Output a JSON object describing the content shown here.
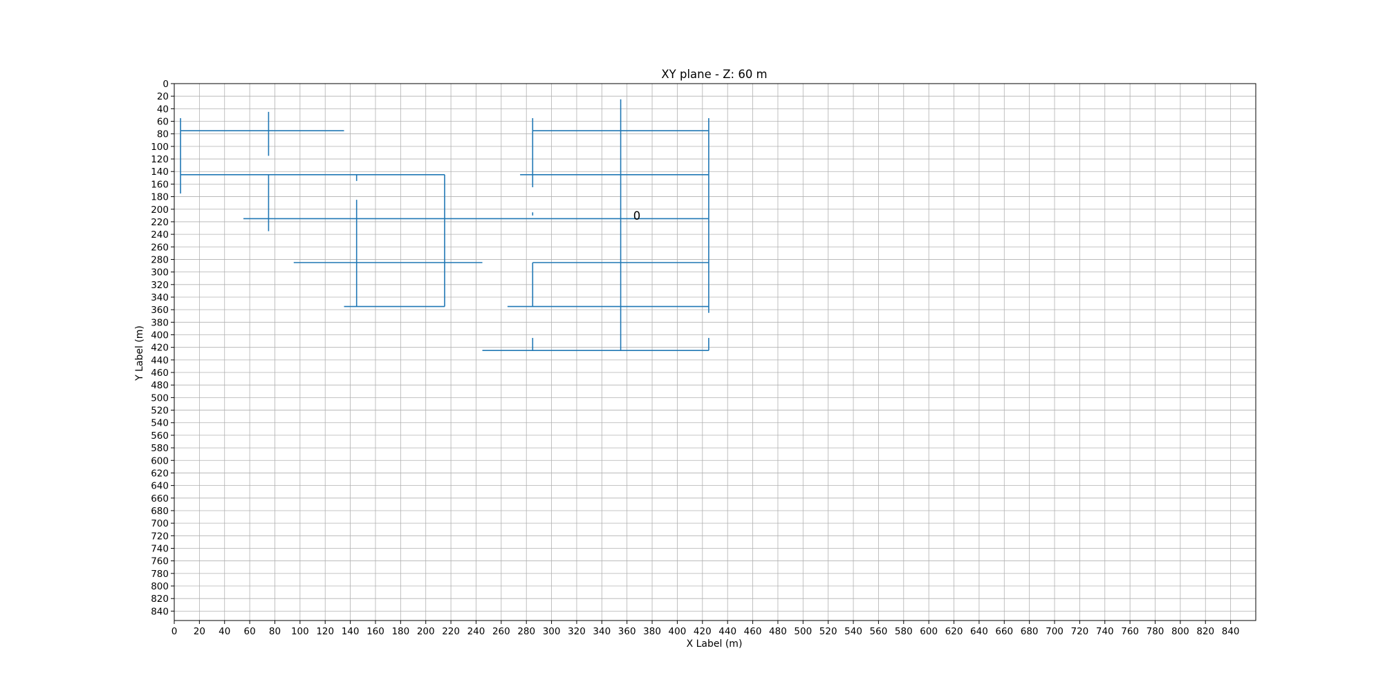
{
  "chart_data": {
    "type": "line",
    "title": "XY plane - Z: 60 m",
    "xlabel": "X Label (m)",
    "ylabel": "Y Label (m)",
    "xlim": [
      0,
      860
    ],
    "ylim": [
      855,
      0
    ],
    "y_inverted": true,
    "grid": true,
    "x_ticks": [
      0,
      20,
      40,
      60,
      80,
      100,
      120,
      140,
      160,
      180,
      200,
      220,
      240,
      260,
      280,
      300,
      320,
      340,
      360,
      380,
      400,
      420,
      440,
      460,
      480,
      500,
      520,
      540,
      560,
      580,
      600,
      620,
      640,
      660,
      680,
      700,
      720,
      740,
      760,
      780,
      800,
      820,
      840
    ],
    "y_ticks": [
      0,
      20,
      40,
      60,
      80,
      100,
      120,
      140,
      160,
      180,
      200,
      220,
      240,
      260,
      280,
      300,
      320,
      340,
      360,
      380,
      400,
      420,
      440,
      460,
      480,
      500,
      520,
      540,
      560,
      580,
      600,
      620,
      640,
      660,
      680,
      700,
      720,
      740,
      760,
      780,
      800,
      820,
      840
    ],
    "series_color": "#1f77b4",
    "segments": [
      {
        "x": [
          5,
          135
        ],
        "y": [
          75,
          75
        ]
      },
      {
        "x": [
          5,
          5
        ],
        "y": [
          55,
          175
        ]
      },
      {
        "x": [
          75,
          75
        ],
        "y": [
          45,
          115
        ]
      },
      {
        "x": [
          5,
          215
        ],
        "y": [
          145,
          145
        ]
      },
      {
        "x": [
          75,
          75
        ],
        "y": [
          145,
          235
        ]
      },
      {
        "x": [
          145,
          145
        ],
        "y": [
          145,
          155
        ]
      },
      {
        "x": [
          215,
          215
        ],
        "y": [
          145,
          355
        ]
      },
      {
        "x": [
          55,
          425
        ],
        "y": [
          215,
          215
        ]
      },
      {
        "x": [
          145,
          145
        ],
        "y": [
          185,
          355
        ]
      },
      {
        "x": [
          95,
          245
        ],
        "y": [
          285,
          285
        ]
      },
      {
        "x": [
          135,
          215
        ],
        "y": [
          355,
          355
        ]
      },
      {
        "x": [
          285,
          425
        ],
        "y": [
          75,
          75
        ]
      },
      {
        "x": [
          285,
          285
        ],
        "y": [
          55,
          165
        ]
      },
      {
        "x": [
          425,
          425
        ],
        "y": [
          55,
          365
        ]
      },
      {
        "x": [
          355,
          355
        ],
        "y": [
          25,
          425
        ]
      },
      {
        "x": [
          275,
          425
        ],
        "y": [
          145,
          145
        ]
      },
      {
        "x": [
          285,
          285
        ],
        "y": [
          205,
          210
        ]
      },
      {
        "x": [
          285,
          425
        ],
        "y": [
          285,
          285
        ]
      },
      {
        "x": [
          285,
          285
        ],
        "y": [
          285,
          355
        ]
      },
      {
        "x": [
          265,
          425
        ],
        "y": [
          355,
          355
        ]
      },
      {
        "x": [
          245,
          425
        ],
        "y": [
          425,
          425
        ]
      },
      {
        "x": [
          285,
          285
        ],
        "y": [
          405,
          425
        ]
      },
      {
        "x": [
          425,
          425
        ],
        "y": [
          405,
          425
        ]
      }
    ],
    "annotations": [
      {
        "text": "0",
        "x": 365,
        "y": 210
      }
    ]
  }
}
